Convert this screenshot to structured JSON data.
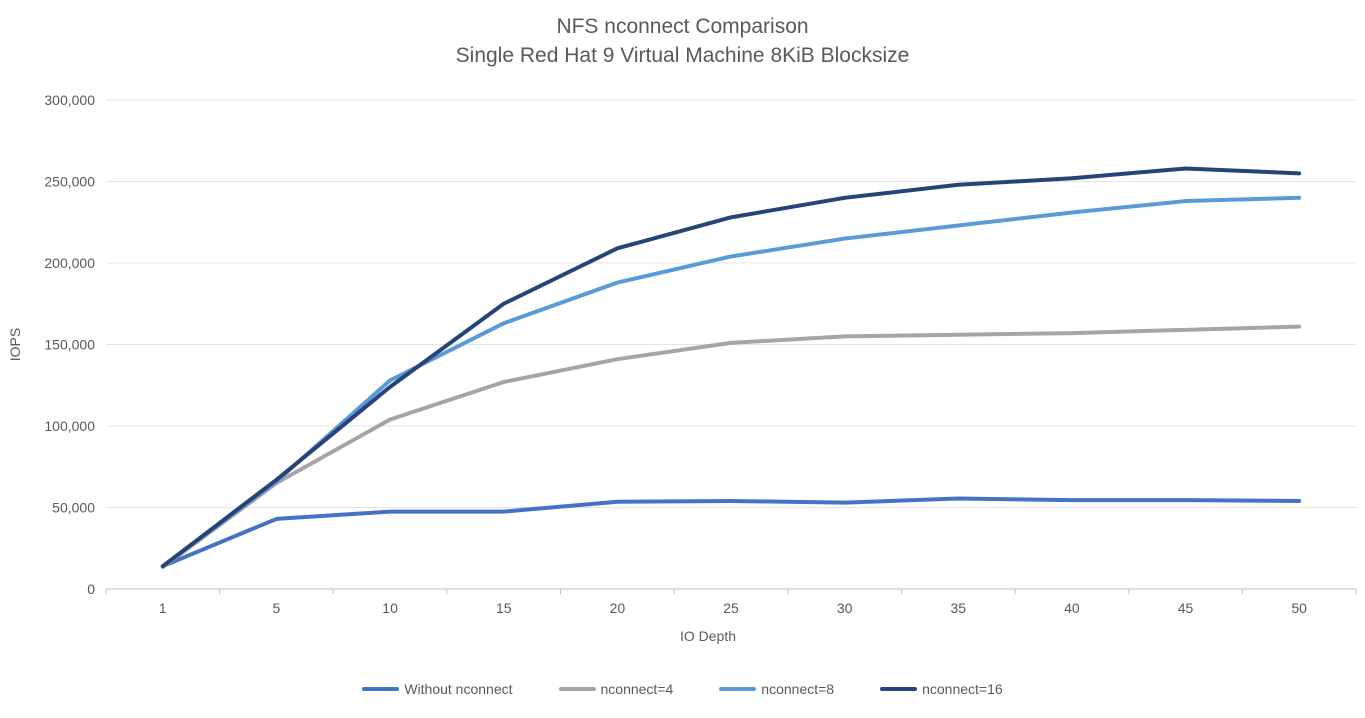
{
  "title": {
    "line1": "NFS nconnect Comparison",
    "line2": "Single Red Hat 9 Virtual Machine 8KiB Blocksize"
  },
  "chart_data": {
    "type": "line",
    "title": "NFS nconnect Comparison",
    "subtitle": "Single Red Hat 9 Virtual Machine 8KiB Blocksize",
    "xlabel": "IO Depth",
    "ylabel": "IOPS",
    "ylim": [
      0,
      300000
    ],
    "ytick_step": 50000,
    "ytick_labels": [
      "0",
      "50,000",
      "100,000",
      "150,000",
      "200,000",
      "250,000",
      "300,000"
    ],
    "grid": "horizontal",
    "legend_position": "bottom",
    "categories": [
      "1",
      "5",
      "10",
      "15",
      "20",
      "25",
      "30",
      "35",
      "40",
      "45",
      "50"
    ],
    "series": [
      {
        "name": "Without nconnect",
        "color": "#4472C4",
        "values": [
          14000,
          43000,
          47500,
          47500,
          53500,
          54000,
          53000,
          55500,
          54500,
          54500,
          54000
        ]
      },
      {
        "name": "nconnect=4",
        "color": "#A5A5A5",
        "values": [
          13500,
          65000,
          104000,
          127000,
          141000,
          151000,
          155000,
          156000,
          157000,
          159000,
          161000
        ]
      },
      {
        "name": "nconnect=8",
        "color": "#5B9BD5",
        "values": [
          14000,
          66000,
          128000,
          163000,
          188000,
          204000,
          215000,
          223000,
          231000,
          238000,
          240000
        ]
      },
      {
        "name": "nconnect=16",
        "color": "#264478",
        "values": [
          14000,
          67000,
          124000,
          175000,
          209000,
          228000,
          240000,
          248000,
          252000,
          258000,
          255000
        ]
      }
    ]
  },
  "colors": {
    "text": "#595959",
    "gridline": "#E4E4E4",
    "axis": "#BFBFBF"
  }
}
